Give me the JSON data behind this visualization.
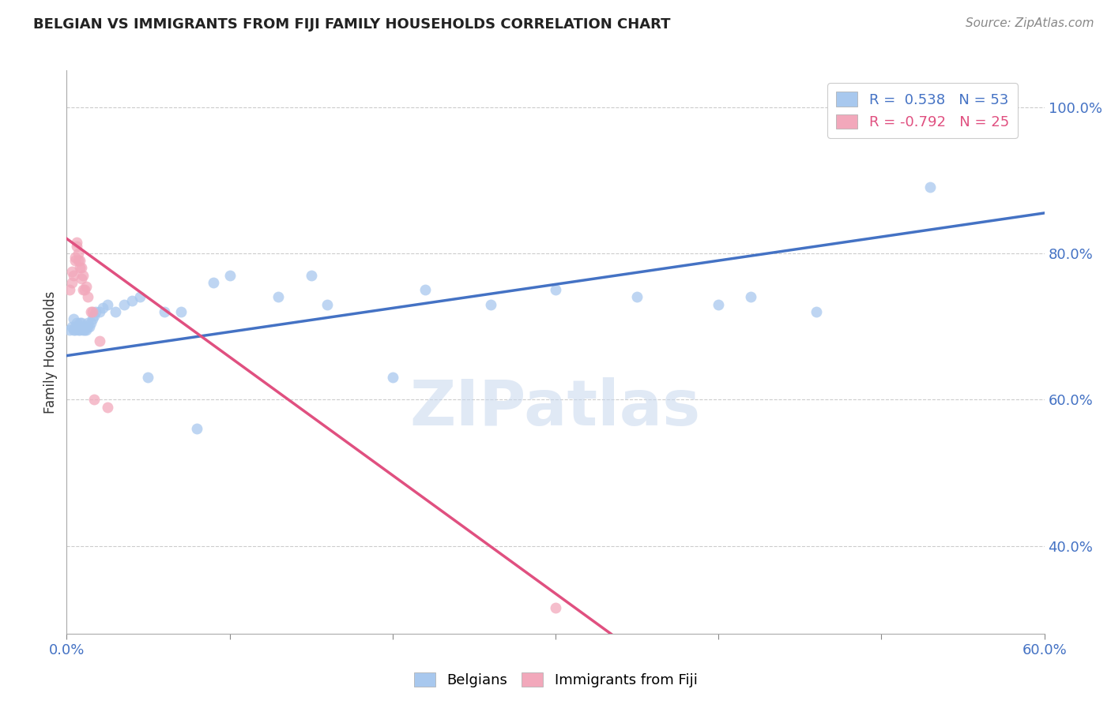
{
  "title": "BELGIAN VS IMMIGRANTS FROM FIJI FAMILY HOUSEHOLDS CORRELATION CHART",
  "source_text": "Source: ZipAtlas.com",
  "ylabel_text": "Family Households",
  "watermark": "ZIPatlas",
  "xlim": [
    0.0,
    0.6
  ],
  "ylim": [
    0.28,
    1.05
  ],
  "xtick_positions": [
    0.0,
    0.1,
    0.2,
    0.3,
    0.4,
    0.5,
    0.6
  ],
  "xtick_labels": [
    "0.0%",
    "",
    "",
    "",
    "",
    "",
    "60.0%"
  ],
  "right_ytick_positions": [
    0.4,
    0.6,
    0.8,
    1.0
  ],
  "right_ytick_labels": [
    "40.0%",
    "60.0%",
    "80.0%",
    "100.0%"
  ],
  "blue_R": 0.538,
  "blue_N": 53,
  "pink_R": -0.792,
  "pink_N": 25,
  "blue_color": "#A8C8EE",
  "pink_color": "#F2A8BB",
  "blue_line_color": "#4472C4",
  "pink_line_color": "#E05080",
  "blue_scatter_x": [
    0.002,
    0.003,
    0.004,
    0.004,
    0.005,
    0.005,
    0.006,
    0.006,
    0.007,
    0.007,
    0.008,
    0.008,
    0.009,
    0.009,
    0.01,
    0.01,
    0.011,
    0.011,
    0.012,
    0.012,
    0.013,
    0.013,
    0.014,
    0.015,
    0.016,
    0.017,
    0.018,
    0.02,
    0.022,
    0.025,
    0.03,
    0.035,
    0.04,
    0.045,
    0.05,
    0.06,
    0.07,
    0.08,
    0.09,
    0.1,
    0.13,
    0.15,
    0.16,
    0.2,
    0.22,
    0.26,
    0.3,
    0.35,
    0.4,
    0.42,
    0.46,
    0.53,
    0.56
  ],
  "blue_scatter_y": [
    0.695,
    0.7,
    0.695,
    0.71,
    0.695,
    0.7,
    0.7,
    0.705,
    0.695,
    0.7,
    0.695,
    0.705,
    0.7,
    0.705,
    0.695,
    0.7,
    0.695,
    0.7,
    0.695,
    0.7,
    0.7,
    0.705,
    0.7,
    0.705,
    0.71,
    0.715,
    0.72,
    0.72,
    0.725,
    0.73,
    0.72,
    0.73,
    0.735,
    0.74,
    0.63,
    0.72,
    0.72,
    0.56,
    0.76,
    0.77,
    0.74,
    0.77,
    0.73,
    0.63,
    0.75,
    0.73,
    0.75,
    0.74,
    0.73,
    0.74,
    0.72,
    0.89,
    1.005
  ],
  "pink_scatter_x": [
    0.002,
    0.003,
    0.003,
    0.004,
    0.005,
    0.005,
    0.006,
    0.006,
    0.007,
    0.007,
    0.008,
    0.008,
    0.009,
    0.009,
    0.01,
    0.01,
    0.011,
    0.012,
    0.013,
    0.015,
    0.016,
    0.017,
    0.02,
    0.025,
    0.3
  ],
  "pink_scatter_y": [
    0.75,
    0.76,
    0.775,
    0.77,
    0.79,
    0.795,
    0.81,
    0.815,
    0.79,
    0.8,
    0.78,
    0.79,
    0.765,
    0.78,
    0.75,
    0.77,
    0.75,
    0.755,
    0.74,
    0.72,
    0.72,
    0.6,
    0.68,
    0.59,
    0.315
  ],
  "blue_trendline_x": [
    0.0,
    0.6
  ],
  "blue_trendline_y": [
    0.66,
    0.855
  ],
  "pink_trendline_x": [
    0.0,
    0.34
  ],
  "pink_trendline_y": [
    0.82,
    0.27
  ],
  "grid_color": "#CCCCCC",
  "grid_yticks": [
    0.4,
    0.6,
    0.8,
    1.0
  ]
}
